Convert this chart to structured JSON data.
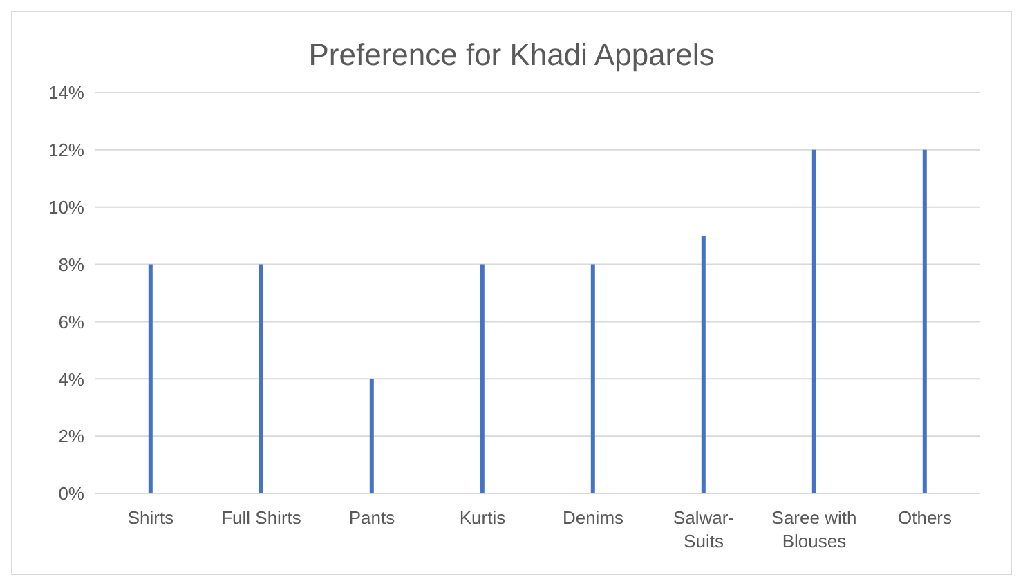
{
  "chart_data": {
    "type": "bar",
    "title": "Preference for Khadi Apparels",
    "categories": [
      "Shirts",
      "Full Shirts",
      "Pants",
      "Kurtis",
      "Denims",
      "Salwar-Suits",
      "Saree with Blouses",
      "Others"
    ],
    "values": [
      8,
      8,
      4,
      8,
      8,
      9,
      12,
      12
    ],
    "color": "#4472c4",
    "ylim": [
      0,
      14
    ],
    "yticks": [
      {
        "value": 0,
        "label": "0%"
      },
      {
        "value": 2,
        "label": "2%"
      },
      {
        "value": 4,
        "label": "4%"
      },
      {
        "value": 6,
        "label": "6%"
      },
      {
        "value": 8,
        "label": "8%"
      },
      {
        "value": 10,
        "label": "10%"
      },
      {
        "value": 12,
        "label": "12%"
      },
      {
        "value": 14,
        "label": "14%"
      }
    ],
    "grid": "y"
  }
}
